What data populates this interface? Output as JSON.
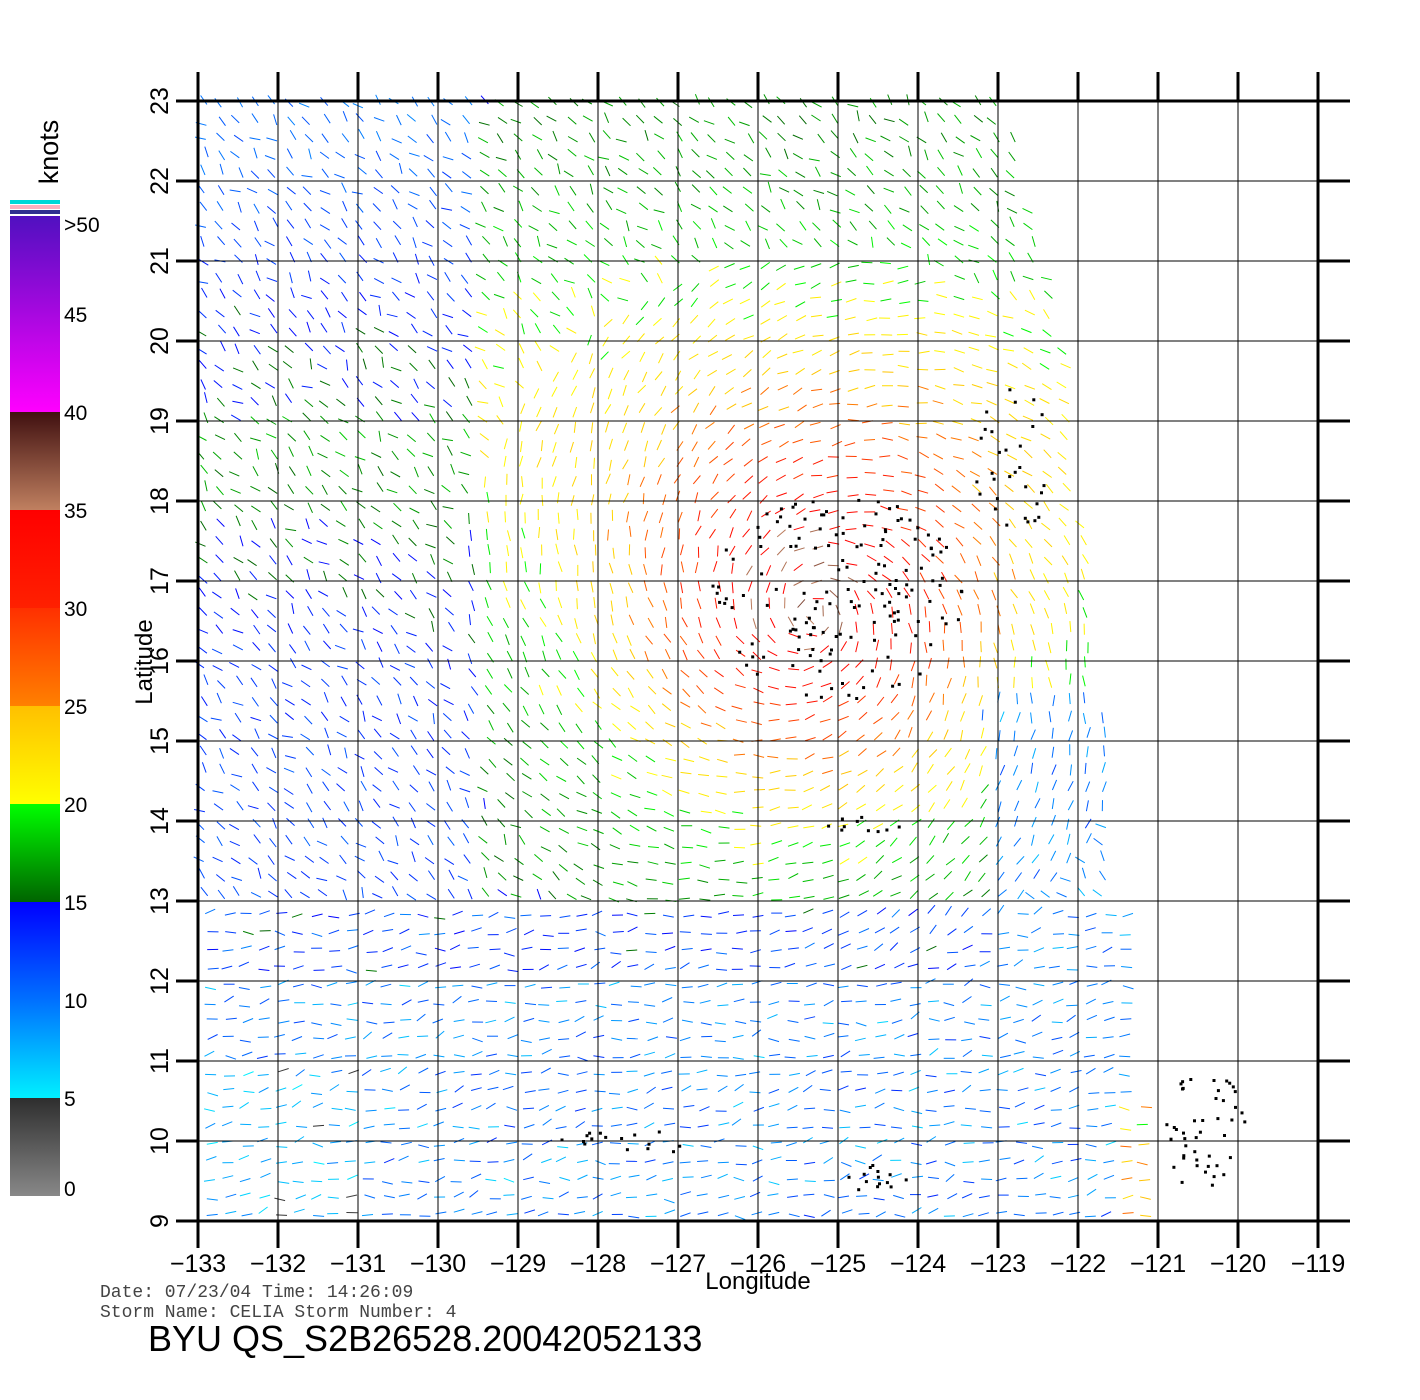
{
  "chart_data": {
    "type": "wind_vector_map",
    "xlabel": "Longitude",
    "ylabel": "Latitude",
    "xlim": [
      -133,
      -119
    ],
    "ylim": [
      9,
      23
    ],
    "x_ticks": [
      "−133",
      "−132",
      "−131",
      "−130",
      "−129",
      "−128",
      "−127",
      "−126",
      "−125",
      "−124",
      "−123",
      "−122",
      "−121",
      "−120",
      "−119"
    ],
    "y_ticks": [
      "9",
      "10",
      "11",
      "12",
      "13",
      "14",
      "15",
      "16",
      "17",
      "18",
      "19",
      "20",
      "21",
      "22",
      "23"
    ],
    "grid": true,
    "swath_right_edge": [
      [
        -121.1,
        9
      ],
      [
        -122.1,
        20.0
      ],
      [
        -122.9,
        23
      ]
    ],
    "storm_center": {
      "lon": -125.3,
      "lat": 16.6
    },
    "colorbar": {
      "unit": "knots",
      "labels": [
        "0",
        "5",
        "10",
        "15",
        "20",
        "25",
        "30",
        "35",
        "40",
        "45",
        ">50"
      ],
      "bands": [
        {
          "from": 0,
          "to": 5,
          "colors": [
            "#888888",
            "#2e2e2e"
          ]
        },
        {
          "from": 5,
          "to": 10,
          "colors": [
            "#00f0ff",
            "#0070ff"
          ]
        },
        {
          "from": 10,
          "to": 15,
          "colors": [
            "#0070ff",
            "#0000ff"
          ]
        },
        {
          "from": 15,
          "to": 20,
          "colors": [
            "#006400",
            "#00ff00"
          ]
        },
        {
          "from": 20,
          "to": 25,
          "colors": [
            "#ffff00",
            "#ffc000"
          ]
        },
        {
          "from": 25,
          "to": 30,
          "colors": [
            "#ff8000",
            "#ff3000"
          ]
        },
        {
          "from": 30,
          "to": 35,
          "colors": [
            "#ff2000",
            "#ff0000"
          ]
        },
        {
          "from": 35,
          "to": 40,
          "colors": [
            "#c08060",
            "#401010"
          ]
        },
        {
          "from": 40,
          "to": 50,
          "colors": [
            "#ff00ff",
            "#5010c0"
          ]
        }
      ],
      "top_stripes": [
        "#00d8d8",
        "#ffb0c0",
        "#303090"
      ]
    }
  },
  "metadata": {
    "date_line": "Date: 07/23/04   Time: 14:26:09",
    "storm_line": "Storm  Name:  CELIA    Storm  Number:  4",
    "product_id": "BYU  QS_S2B26528.20042052133"
  }
}
